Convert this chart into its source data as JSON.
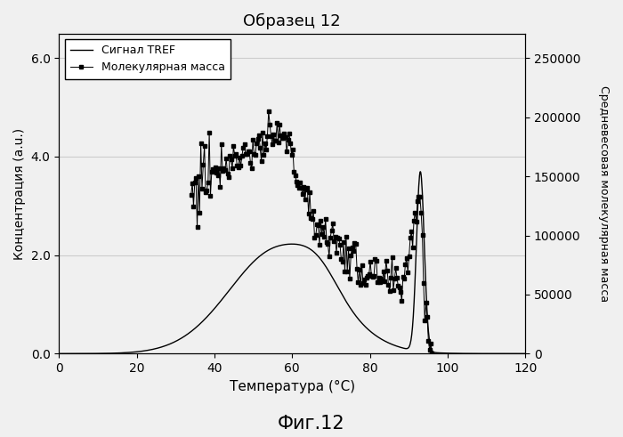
{
  "title": "Образец 12",
  "xlabel": "Температура (°C)",
  "ylabel_left": "Концентрация (a.u.)",
  "ylabel_right": "Средневесовая молекулярная масса",
  "legend_tref": "Сигнал TREF",
  "legend_mw": "Молекулярная масса",
  "xlim": [
    0,
    120
  ],
  "ylim_left": [
    0.0,
    6.5
  ],
  "ylim_right": [
    0,
    270833
  ],
  "xticks": [
    0,
    20,
    40,
    60,
    80,
    100,
    120
  ],
  "yticks_left": [
    0.0,
    2.0,
    4.0,
    6.0
  ],
  "yticks_right": [
    0,
    50000,
    100000,
    150000,
    200000,
    250000
  ],
  "fig_caption": "Фиг.12",
  "background_color": "#f0f0f0",
  "tref_color": "#000000",
  "mw_color": "#000000",
  "grid_color": "#cccccc",
  "mw_noise_seed": 77,
  "mw_noise_scale": 9000,
  "mw_n_points": 200
}
